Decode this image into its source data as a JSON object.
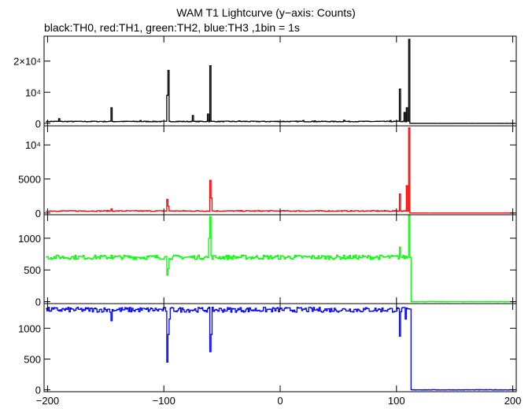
{
  "chart_data": {
    "type": "line",
    "title": "WAM T1 Lightcurve (y−axis: Counts)",
    "subtitle": "black:TH0, red:TH1, green:TH2, blue:TH3 ,1bin = 1s",
    "xlim": [
      -203,
      203
    ],
    "x_ticks": [
      -200,
      -100,
      0,
      100,
      200
    ],
    "x_tick_labels": [
      "−200",
      "−100",
      "0",
      "100",
      "200"
    ],
    "grid": false,
    "panels": [
      {
        "name": "TH0",
        "color": "#000000",
        "ylim": [
          -800,
          28000
        ],
        "y_ticks": [
          0,
          10000,
          20000
        ],
        "y_tick_labels": [
          "0",
          "10⁴",
          "2×10⁴"
        ],
        "baseline": 600,
        "noise": 120,
        "after_value": 0,
        "cutoff": 112,
        "spikes": [
          [
            -190,
            1500
          ],
          [
            -160,
            700
          ],
          [
            -145,
            5000
          ],
          [
            -120,
            900
          ],
          [
            -97,
            9000
          ],
          [
            -96,
            17000
          ],
          [
            -75,
            2500
          ],
          [
            -62,
            3000
          ],
          [
            -60,
            18500
          ],
          [
            -35,
            800
          ],
          [
            -10,
            600
          ],
          [
            20,
            900
          ],
          [
            30,
            800
          ],
          [
            55,
            1000
          ],
          [
            70,
            700
          ],
          [
            95,
            900
          ],
          [
            103,
            11000
          ],
          [
            107,
            3500
          ],
          [
            109,
            5000
          ],
          [
            111,
            27000
          ]
        ]
      },
      {
        "name": "TH1",
        "color": "#ff0000",
        "ylim": [
          -250,
          12800
        ],
        "y_ticks": [
          0,
          5000,
          10000
        ],
        "y_tick_labels": [
          "0",
          "5000",
          "10⁴"
        ],
        "baseline": 300,
        "noise": 60,
        "after_value": 0,
        "cutoff": 112,
        "spikes": [
          [
            -145,
            600
          ],
          [
            -97,
            2000
          ],
          [
            -96,
            1000
          ],
          [
            -60,
            4800
          ],
          [
            -59,
            2200
          ],
          [
            103,
            2800
          ],
          [
            109,
            4000
          ],
          [
            111,
            12500
          ]
        ]
      },
      {
        "name": "TH2",
        "color": "#00ff00",
        "ylim": [
          -30,
          1370
        ],
        "y_ticks": [
          0,
          500,
          1000
        ],
        "y_tick_labels": [
          "0",
          "500",
          "1000"
        ],
        "baseline": 700,
        "noise": 35,
        "after_value": 0,
        "cutoff": 113,
        "spikes": [
          [
            -145,
            730
          ],
          [
            -97,
            420
          ],
          [
            -96,
            520
          ],
          [
            -61,
            1000
          ],
          [
            -60,
            1340
          ],
          [
            103,
            860
          ],
          [
            111,
            1360
          ]
        ]
      },
      {
        "name": "TH3",
        "color": "#0000ff",
        "ylim": [
          -30,
          1400
        ],
        "y_ticks": [
          0,
          500,
          1000
        ],
        "y_tick_labels": [
          "0",
          "500",
          "1000"
        ],
        "baseline": 1300,
        "noise": 40,
        "after_value": 0,
        "cutoff": 113,
        "spikes": [
          [
            -145,
            1120
          ],
          [
            -97,
            450
          ],
          [
            -96,
            900
          ],
          [
            -95,
            1150
          ],
          [
            -60,
            620
          ],
          [
            -59,
            900
          ],
          [
            103,
            870
          ],
          [
            108,
            1150
          ]
        ]
      }
    ]
  }
}
